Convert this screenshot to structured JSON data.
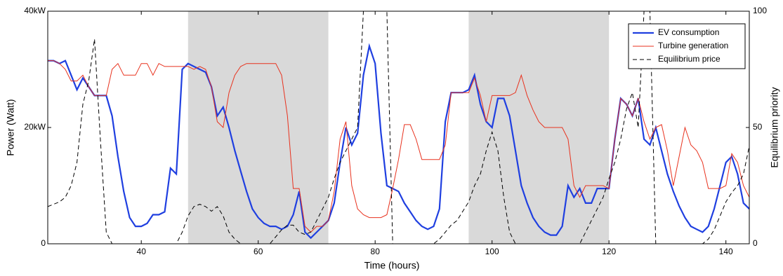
{
  "chart_data": {
    "type": "line",
    "xlabel": "Time (hours)",
    "ylabel": "Power (Watt)",
    "y2label": "Equilibrium priority",
    "xlim": [
      24,
      144
    ],
    "xticks": [
      40,
      60,
      80,
      100,
      120,
      140
    ],
    "ylim": [
      0,
      40000
    ],
    "yticks": [
      {
        "value": 0,
        "label": "0"
      },
      {
        "value": 20000,
        "label": "20kW"
      },
      {
        "value": 40000,
        "label": "40kW"
      }
    ],
    "y2lim": [
      0,
      100
    ],
    "y2ticks": [
      0,
      50,
      100
    ],
    "shaded_x": [
      [
        48,
        72
      ],
      [
        96,
        120
      ]
    ],
    "shade_color": "#d9d9d9",
    "legend": "upper right",
    "x": [
      24,
      25,
      26,
      27,
      28,
      29,
      30,
      31,
      32,
      33,
      34,
      35,
      36,
      37,
      38,
      39,
      40,
      41,
      42,
      43,
      44,
      45,
      46,
      47,
      48,
      49,
      50,
      51,
      52,
      53,
      54,
      55,
      56,
      57,
      58,
      59,
      60,
      61,
      62,
      63,
      64,
      65,
      66,
      67,
      68,
      69,
      70,
      71,
      72,
      73,
      74,
      75,
      76,
      77,
      78,
      79,
      80,
      81,
      82,
      83,
      84,
      85,
      86,
      87,
      88,
      89,
      90,
      91,
      92,
      93,
      94,
      95,
      96,
      97,
      98,
      99,
      100,
      101,
      102,
      103,
      104,
      105,
      106,
      107,
      108,
      109,
      110,
      111,
      112,
      113,
      114,
      115,
      116,
      117,
      118,
      119,
      120,
      121,
      122,
      123,
      124,
      125,
      126,
      127,
      128,
      129,
      130,
      131,
      132,
      133,
      134,
      135,
      136,
      137,
      138,
      139,
      140,
      141,
      142,
      143,
      144
    ],
    "series": [
      {
        "name": "EV consumption",
        "color": "#1f3fe0",
        "width": 2.2,
        "dash": false,
        "values": [
          31500,
          31500,
          31000,
          31500,
          29000,
          26500,
          28500,
          27000,
          25500,
          25500,
          25500,
          22000,
          15000,
          9000,
          4500,
          3000,
          3000,
          3500,
          5000,
          5000,
          5500,
          13000,
          12000,
          30000,
          31000,
          30500,
          30000,
          29500,
          27000,
          22000,
          23500,
          20000,
          16000,
          12500,
          9000,
          6000,
          4500,
          3500,
          3000,
          3000,
          2500,
          3000,
          5000,
          9000,
          2000,
          1000,
          2000,
          3000,
          4000,
          7000,
          14000,
          20000,
          17000,
          19000,
          29000,
          34000,
          31000,
          19000,
          10000,
          9500,
          9000,
          7000,
          5500,
          4000,
          3000,
          2500,
          3000,
          6000,
          21000,
          26000,
          26000,
          26000,
          26500,
          29000,
          24000,
          21000,
          20000,
          25000,
          25000,
          22000,
          16000,
          10000,
          7000,
          4500,
          3000,
          2000,
          1500,
          1500,
          3000,
          10000,
          8000,
          9500,
          7000,
          7000,
          9500,
          9500,
          9500,
          18000,
          25000,
          24000,
          22000,
          25000,
          18000,
          17000,
          20000,
          16000,
          12000,
          9000,
          6500,
          4500,
          3000,
          2500,
          2000,
          3000,
          6000,
          10000,
          14000,
          15000,
          12000,
          7000,
          6000
        ]
      },
      {
        "name": "Turbine generation",
        "color": "#e8321e",
        "width": 1,
        "dash": false,
        "values": [
          31500,
          31500,
          31000,
          30000,
          28000,
          28000,
          29000,
          27000,
          25500,
          25500,
          25500,
          30000,
          31000,
          29000,
          29000,
          29000,
          31000,
          31000,
          29000,
          31000,
          30500,
          30500,
          30500,
          30500,
          30500,
          30000,
          30500,
          30000,
          27000,
          21000,
          20000,
          26000,
          29000,
          30500,
          31000,
          31000,
          31000,
          31000,
          31000,
          31000,
          29000,
          22000,
          9500,
          9500,
          3000,
          2000,
          3000,
          3000,
          4000,
          9000,
          18000,
          21000,
          10000,
          6000,
          5000,
          4500,
          4500,
          4500,
          5000,
          9500,
          14500,
          20500,
          20500,
          18000,
          14500,
          14500,
          14500,
          14500,
          17000,
          26000,
          26000,
          26000,
          26000,
          28500,
          25500,
          21000,
          25500,
          25500,
          25500,
          25500,
          26000,
          29000,
          25500,
          23000,
          21000,
          20000,
          20000,
          20000,
          20000,
          18000,
          10000,
          8000,
          10000,
          10000,
          10000,
          10000,
          9500,
          18000,
          25000,
          24000,
          22000,
          25000,
          21000,
          18000,
          20000,
          20500,
          16000,
          10000,
          15000,
          20000,
          17000,
          16000,
          14000,
          9500,
          9500,
          9500,
          10000,
          15500,
          14000,
          10000,
          8000
        ]
      },
      {
        "name": "Equilibrium price",
        "color": "#000000",
        "width": 1,
        "dash": true,
        "axis": "y2",
        "values": [
          16,
          17,
          18,
          20,
          25,
          35,
          60,
          70,
          88,
          45,
          5,
          0,
          0,
          0,
          0,
          0,
          0,
          0,
          0,
          0,
          0,
          0,
          0,
          5,
          12,
          16,
          17,
          16,
          14,
          16,
          12,
          5,
          2,
          0,
          0,
          0,
          0,
          0,
          0,
          3,
          6,
          8,
          8,
          5,
          4,
          5,
          10,
          15,
          20,
          28,
          35,
          40,
          45,
          50,
          100,
          100,
          100,
          100,
          100,
          0,
          0,
          0,
          0,
          0,
          0,
          0,
          0,
          2,
          5,
          8,
          10,
          14,
          18,
          25,
          30,
          40,
          48,
          40,
          20,
          5,
          0,
          0,
          0,
          0,
          0,
          0,
          0,
          0,
          0,
          0,
          0,
          0,
          5,
          10,
          15,
          20,
          28,
          35,
          45,
          58,
          65,
          50,
          100,
          100,
          0,
          0,
          0,
          0,
          0,
          0,
          0,
          0,
          0,
          2,
          6,
          12,
          18,
          22,
          25,
          30,
          42
        ]
      }
    ]
  }
}
